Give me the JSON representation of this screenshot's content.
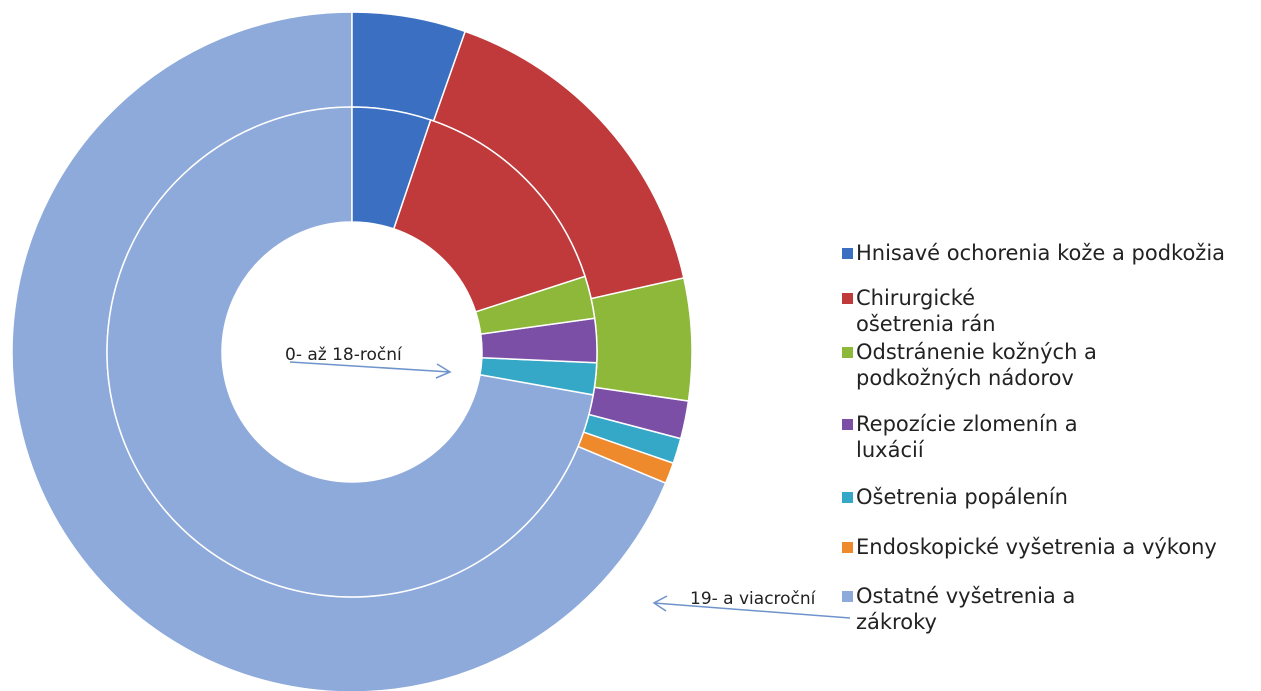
{
  "chart_data": {
    "type": "doughnut",
    "categories": [
      "Hnisavé ochorenia kože a podkožia",
      "Chirurgické ošetrenia rán",
      "Odstránenie kožných a podkožných nádorov",
      "Repozície zlomenín a luxácií",
      "Ošetrenia popálenín",
      "Endoskopické vyšetrenia a výkony",
      "Ostatné vyšetrenia a zákroky"
    ],
    "colors": [
      "#3b6fc2",
      "#c0393b",
      "#8db83a",
      "#7b4fa6",
      "#35a8c8",
      "#ee8a2c",
      "#8eaadb"
    ],
    "series": [
      {
        "name": "0- až 18-roční",
        "values": [
          5.2,
          14.8,
          2.8,
          2.9,
          2.1,
          0,
          72.2
        ]
      },
      {
        "name": "19- a viacroční",
        "values": [
          5.4,
          16.1,
          5.8,
          1.8,
          1.2,
          1.0,
          68.7
        ]
      }
    ]
  }
}
